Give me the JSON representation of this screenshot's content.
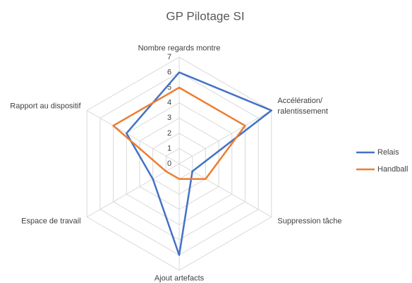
{
  "chart_data": {
    "type": "radar",
    "title": "GP Pilotage SI",
    "categories": [
      "Nombre regards montre",
      "Accélération/\nralentissement",
      "Suppression tâche",
      "Ajout artefacts",
      "Espace de travail",
      "Rapport au dispositif"
    ],
    "series": [
      {
        "name": "Relais",
        "color": "#4472c4",
        "values": [
          6,
          7,
          1,
          6,
          2,
          4
        ]
      },
      {
        "name": "Handball",
        "color": "#ed7d31",
        "values": [
          5,
          5,
          2,
          1,
          1,
          5
        ]
      }
    ],
    "ylim": [
      0,
      7
    ],
    "yticks": [
      0,
      1,
      2,
      3,
      4,
      5,
      6,
      7
    ],
    "grid": true,
    "legend": "right"
  }
}
